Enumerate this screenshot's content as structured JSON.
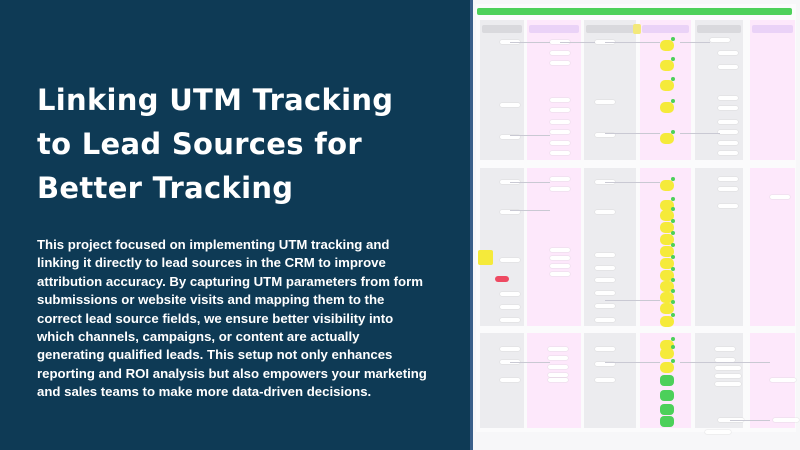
{
  "slide": {
    "title": "Linking UTM Tracking to Lead Sources for Better Tracking",
    "description": "This project focused on implementing UTM tracking and linking it directly to lead sources in the CRM to improve attribution accuracy. By capturing UTM parameters from form submissions or website visits and mapping them to the correct lead source fields, we ensure better visibility into which channels, campaigns, or content are actually generating qualified leads. This setup not only enhances reporting and ROI analysis but also empowers your marketing and sales teams to make more data-driven decisions."
  },
  "colors": {
    "background": "#0e3a55",
    "text": "#ffffff",
    "lane_gray": "#ececef",
    "lane_pink": "#fde8fb",
    "header_gray": "#d9d9dd",
    "header_purple": "#ead2f7",
    "node_yellow": "#f5ea3a",
    "node_green": "#4cd05a",
    "node_red": "#ee4a62",
    "top_bar_green": "#4dd15a"
  },
  "diagram": {
    "type": "flowchart-screenshot",
    "lanes": 6
  }
}
